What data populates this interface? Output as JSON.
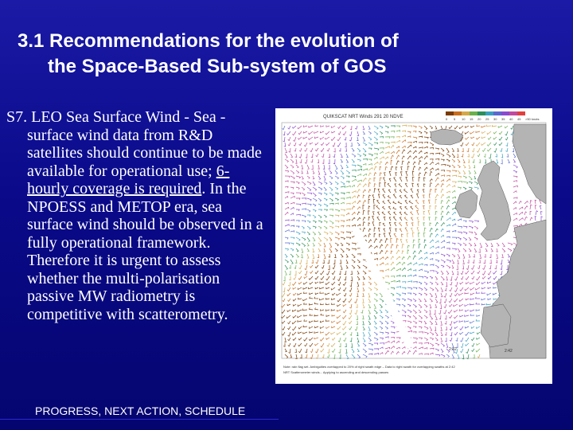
{
  "slide": {
    "title_line1": "3.1  Recommendations for the evolution of",
    "title_line2": "the Space-Based Sub-system of GOS",
    "body_lead": "S7. LEO Sea Surface Wind - Sea -surface wind data from R&D satellites should continue to be made available for operational use; ",
    "body_underlined": "6-hourly coverage is required",
    "body_rest": ".  In the NPOESS and METOP era, sea surface wind should be observed in a fully operational framework. Therefore it is urgent to assess whether the multi-polarisation passive MW radiometry is competitive with scatterometry.",
    "footer": "PROGRESS, NEXT ACTION, SCHEDULE"
  },
  "map_figure": {
    "header_text": "QUIKSCAT NRT Winds  291  20 NDVE",
    "legend_ticks": [
      "0",
      "5",
      "10",
      "15",
      "20",
      "25",
      "30",
      "35",
      "40",
      "45",
      ">50 knots"
    ],
    "time_label_1": "2:42",
    "time_label_2": "2:42",
    "note_line1": "Note: rain flag set. Ambiguities overlapped to 20% of right swath edge – Data to right swath for overlapping swaths at 2:42",
    "note_line2": "NRT Scatterometer winds... Applying to ascending and descending passes",
    "colors": {
      "land": "#b4b4b4",
      "wind_palette": [
        "#7a3a00",
        "#c86e1e",
        "#d4a84a",
        "#6ab04c",
        "#2a8f5a",
        "#3aa0c0",
        "#5a6ad0",
        "#8a4ad0",
        "#c04aa0",
        "#e04040"
      ]
    }
  }
}
